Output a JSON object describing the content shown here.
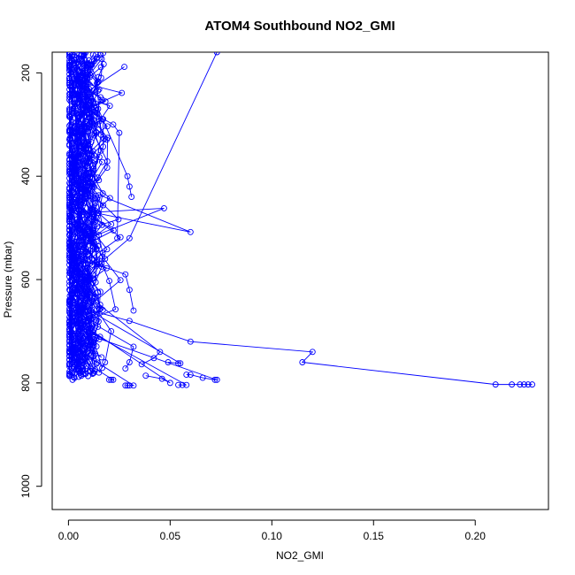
{
  "chart_data": {
    "type": "scatter",
    "title": "ATOM4 Southbound NO2_GMI",
    "xlabel": "NO2_GMI",
    "ylabel": "Pressure (mbar)",
    "xlim": [
      -0.008,
      0.236
    ],
    "ylim": [
      1045,
      160
    ],
    "y_reversed": true,
    "x_ticks": [
      0.0,
      0.05,
      0.1,
      0.15,
      0.2
    ],
    "x_tick_labels": [
      "0.00",
      "0.05",
      "0.10",
      "0.15",
      "0.20"
    ],
    "y_ticks": [
      200,
      400,
      600,
      800,
      1000
    ],
    "y_tick_labels": [
      "200",
      "400",
      "600",
      "800",
      "1000"
    ],
    "grid": false,
    "legend": "none",
    "series_color": "#0000ff",
    "marker": "open-circle",
    "series": [
      {
        "x": [
          0.073,
          0.03,
          0.018,
          0.012
        ],
        "y": [
          160,
          520,
          560,
          590
        ]
      },
      {
        "x": [
          0.011,
          0.03,
          0.06,
          0.12,
          0.115,
          0.21,
          0.218,
          0.222,
          0.224,
          0.226,
          0.228
        ],
        "y": [
          660,
          680,
          720,
          740,
          760,
          803,
          803,
          803,
          803,
          803,
          803
        ]
      },
      {
        "x": [
          0.005,
          0.06,
          0.012,
          0.047,
          0.01
        ],
        "y": [
          420,
          508,
          470,
          462,
          520
        ]
      },
      {
        "x": [
          0.012,
          0.073,
          0.072,
          0.066,
          0.06,
          0.058
        ],
        "y": [
          710,
          794,
          794,
          790,
          784,
          784
        ]
      },
      {
        "x": [
          0.01,
          0.058,
          0.056,
          0.054
        ],
        "y": [
          700,
          804,
          804,
          804
        ]
      },
      {
        "x": [
          0.008,
          0.05,
          0.046,
          0.038
        ],
        "y": [
          690,
          800,
          792,
          786
        ]
      },
      {
        "x": [
          0.006,
          0.032,
          0.03,
          0.029,
          0.028
        ],
        "y": [
          740,
          805,
          805,
          805,
          805
        ]
      },
      {
        "x": [
          0.004,
          0.022,
          0.021,
          0.02
        ],
        "y": [
          750,
          794,
          794,
          794
        ]
      },
      {
        "x": [
          0.002,
          0.003,
          0.004,
          0.006
        ],
        "y": [
          735,
          750,
          760,
          770
        ]
      },
      {
        "x": [
          0.002,
          0.003,
          0.002
        ],
        "y": [
          780,
          790,
          794
        ]
      },
      {
        "x": [
          0.006,
          0.055,
          0.054,
          0.049
        ],
        "y": [
          650,
          762,
          762,
          760
        ]
      },
      {
        "x": [
          0.009,
          0.045,
          0.042,
          0.036
        ],
        "y": [
          630,
          740,
          752,
          764
        ]
      },
      {
        "x": [
          0.006,
          0.028,
          0.03,
          0.032
        ],
        "y": [
          560,
          590,
          620,
          660
        ]
      },
      {
        "x": [
          0.007,
          0.029,
          0.03,
          0.031
        ],
        "y": [
          200,
          400,
          420,
          440
        ]
      },
      {
        "x": [
          0.004,
          0.022,
          0.025,
          0.024
        ],
        "y": [
          260,
          300,
          316,
          520
        ]
      },
      {
        "x": [
          0.01,
          0.032,
          0.03,
          0.028
        ],
        "y": [
          680,
          730,
          760,
          772
        ]
      },
      {
        "x": [
          0.003,
          0.014,
          0.016,
          0.012,
          0.011,
          0.01
        ],
        "y": [
          160,
          220,
          320,
          420,
          520,
          620
        ]
      },
      {
        "x": [
          0.004,
          0.021,
          0.018,
          0.015
        ],
        "y": [
          600,
          700,
          760,
          780
        ]
      }
    ],
    "cluster_note_color": "#0000ff"
  }
}
